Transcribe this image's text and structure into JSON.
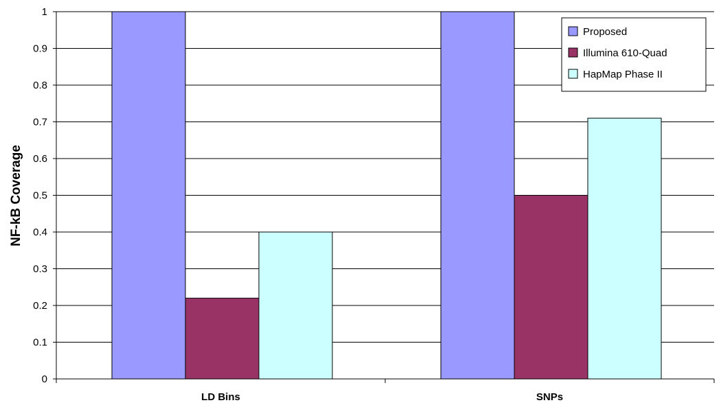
{
  "chart_data": {
    "type": "bar",
    "title": "",
    "xlabel": "",
    "ylabel": "NF-kB Coverage",
    "ylim": [
      0,
      1
    ],
    "yticks": [
      0,
      0.1,
      0.2,
      0.3,
      0.4,
      0.5,
      0.6,
      0.7,
      0.8,
      0.9,
      1
    ],
    "ytick_labels": [
      "0",
      "0.1",
      "0.2",
      "0.3",
      "0.4",
      "0.5",
      "0.6",
      "0.7",
      "0.8",
      "0.9",
      "1"
    ],
    "categories": [
      "LD Bins",
      "SNPs"
    ],
    "series": [
      {
        "name": "Proposed",
        "values": [
          1.0,
          1.0
        ],
        "color": "#9999FF"
      },
      {
        "name": "Illumina 610-Quad",
        "values": [
          0.22,
          0.5
        ],
        "color": "#993366"
      },
      {
        "name": "HapMap Phase II",
        "values": [
          0.4,
          0.71
        ],
        "color": "#CCFFFF"
      }
    ],
    "grid": "horizontal",
    "legend_position": "top-right",
    "bar_edge_color": "#000000",
    "background_color": "#FFFFFF"
  }
}
